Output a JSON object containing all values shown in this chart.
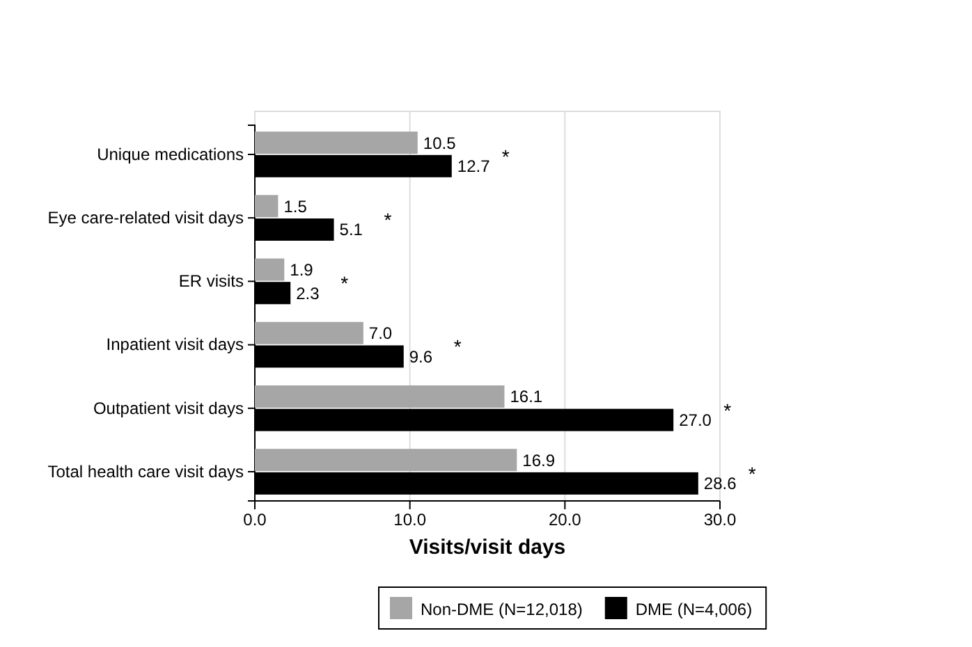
{
  "chart_data": {
    "type": "bar",
    "orientation": "horizontal",
    "xlabel": "Visits/visit days",
    "categories": [
      "Unique medications",
      "Eye care-related visit days",
      "ER visits",
      "Inpatient visit days",
      "Outpatient visit days",
      "Total health care visit days"
    ],
    "series": [
      {
        "name": "Non-DME (N=12,018)",
        "color": "#a6a6a6",
        "values": [
          10.5,
          1.5,
          1.9,
          7.0,
          16.1,
          16.9
        ],
        "value_labels": [
          "10.5",
          "1.5",
          "1.9",
          "7.0",
          "16.1",
          "16.9"
        ]
      },
      {
        "name": "DME (N=4,006)",
        "color": "#000000",
        "values": [
          12.7,
          5.1,
          2.3,
          9.6,
          27.0,
          28.6
        ],
        "value_labels": [
          "12.7",
          "5.1",
          "2.3",
          "9.6",
          "27.0",
          "28.6"
        ]
      }
    ],
    "xlim": [
      0,
      30
    ],
    "xticks": [
      {
        "value": 0,
        "label": "0.0"
      },
      {
        "value": 10,
        "label": "10.0"
      },
      {
        "value": 20,
        "label": "20.0"
      },
      {
        "value": 30,
        "label": "30.0"
      }
    ],
    "grid": "x",
    "legend": "bottom",
    "annotations": [
      {
        "text": "*",
        "x": 12.7,
        "y": "Unique medications"
      },
      {
        "text": "*",
        "x": 5.1,
        "y": "Eye care-related visit days"
      },
      {
        "text": "*",
        "x": 2.3,
        "y": "ER visits"
      },
      {
        "text": "*",
        "x": 9.6,
        "y": "Inpatient visit days"
      },
      {
        "text": "*",
        "x": 27.0,
        "y": "Outpatient visit days"
      },
      {
        "text": "*",
        "x": 28.6,
        "y": "Total health care visit days"
      }
    ]
  }
}
